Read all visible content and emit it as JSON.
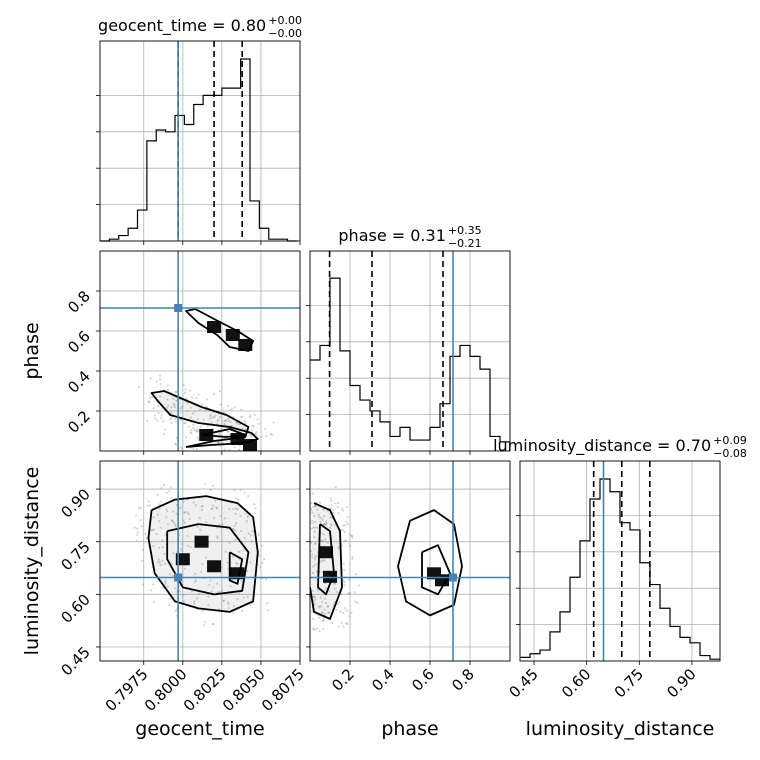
{
  "chart_data": {
    "type": "corner",
    "parameters": [
      "geocent_time",
      "phase",
      "luminosity_distance"
    ],
    "axis_labels": {
      "x": [
        "geocent_time",
        "phase",
        "luminosity_distance"
      ],
      "y": [
        "phase",
        "luminosity_distance"
      ]
    },
    "truth": {
      "geocent_time": 0.7997,
      "phase": 0.715,
      "luminosity_distance": 0.648
    },
    "colors": {
      "truth": "#4682b4",
      "histogram": "#000000",
      "contour": "#000000",
      "grid": "#b0b0b0"
    },
    "titles": [
      {
        "name": "geocent_time",
        "median": "0.80",
        "plus": "+0.00",
        "minus": "−0.00"
      },
      {
        "name": "phase",
        "median": "0.31",
        "plus": "+0.35",
        "minus": "−0.21"
      },
      {
        "name": "luminosity_distance",
        "median": "0.70",
        "plus": "+0.09",
        "minus": "−0.08"
      }
    ],
    "ranges": {
      "geocent_time": [
        0.7947,
        0.8075
      ],
      "phase": [
        0.0,
        1.0
      ],
      "luminosity_distance": [
        0.41,
        0.98
      ]
    },
    "ticks": {
      "geocent_time": {
        "values": [
          0.7975,
          0.8,
          0.8025,
          0.805,
          0.8075
        ],
        "labels": [
          "0.7975",
          "0.8000",
          "0.8025",
          "0.8050",
          "0.8075"
        ]
      },
      "phase": {
        "values": [
          0.2,
          0.4,
          0.6,
          0.8
        ],
        "labels": [
          "0.2",
          "0.4",
          "0.6",
          "0.8"
        ]
      },
      "luminosity_distance": {
        "values": [
          0.45,
          0.6,
          0.75,
          0.9
        ],
        "labels": [
          "0.45",
          "0.60",
          "0.75",
          "0.90"
        ]
      }
    },
    "quantiles": {
      "geocent_time": [
        0.7997,
        0.802,
        0.8038
      ],
      "phase": [
        0.098,
        0.31,
        0.665
      ],
      "luminosity_distance": [
        0.62,
        0.7,
        0.78
      ]
    },
    "histograms": {
      "geocent_time": {
        "edges": [
          0.7947,
          0.7953,
          0.7959,
          0.7965,
          0.7971,
          0.7977,
          0.7983,
          0.7989,
          0.7995,
          0.8001,
          0.8007,
          0.8013,
          0.8019,
          0.8025,
          0.8031,
          0.8037,
          0.8043,
          0.8049,
          0.8055,
          0.8061,
          0.8067,
          0.8073
        ],
        "counts": [
          0.0,
          0.01,
          0.03,
          0.07,
          0.17,
          0.55,
          0.61,
          0.6,
          0.69,
          0.64,
          0.75,
          0.8,
          0.8,
          0.84,
          0.84,
          1.0,
          0.22,
          0.07,
          0.01,
          0.01,
          0.0
        ]
      },
      "phase": {
        "edges": [
          0.0,
          0.05,
          0.1,
          0.15,
          0.2,
          0.25,
          0.3,
          0.35,
          0.4,
          0.45,
          0.5,
          0.55,
          0.6,
          0.65,
          0.7,
          0.75,
          0.8,
          0.85,
          0.9,
          0.95,
          1.0
        ],
        "counts": [
          0.5,
          0.58,
          0.95,
          0.55,
          0.36,
          0.28,
          0.22,
          0.16,
          0.08,
          0.13,
          0.06,
          0.06,
          0.13,
          0.26,
          0.52,
          0.58,
          0.52,
          0.45,
          0.08,
          0.05
        ]
      },
      "luminosity_distance": {
        "edges": [
          0.41,
          0.4385,
          0.467,
          0.4955,
          0.524,
          0.5525,
          0.581,
          0.6095,
          0.638,
          0.6665,
          0.695,
          0.7235,
          0.752,
          0.7805,
          0.809,
          0.8375,
          0.866,
          0.8945,
          0.923,
          0.9515,
          0.98
        ],
        "counts": [
          0.02,
          0.04,
          0.06,
          0.16,
          0.27,
          0.46,
          0.66,
          0.89,
          1.0,
          0.93,
          0.76,
          0.72,
          0.54,
          0.42,
          0.29,
          0.19,
          0.13,
          0.1,
          0.03,
          0.01
        ]
      }
    },
    "pairs": [
      {
        "x": "geocent_time",
        "y": "phase",
        "contours": [
          [
            [
              0.8002,
              0.02
            ],
            [
              0.8018,
              0.03
            ],
            [
              0.804,
              0.04
            ],
            [
              0.8048,
              0.06
            ],
            [
              0.8044,
              0.09
            ],
            [
              0.803,
              0.12
            ],
            [
              0.801,
              0.14
            ],
            [
              0.7992,
              0.18
            ],
            [
              0.7984,
              0.25
            ],
            [
              0.798,
              0.29
            ],
            [
              0.7988,
              0.3
            ],
            [
              0.8,
              0.26
            ],
            [
              0.8012,
              0.22
            ],
            [
              0.8028,
              0.18
            ],
            [
              0.8042,
              0.12
            ],
            [
              0.804,
              0.07
            ],
            [
              0.802,
              0.05
            ],
            [
              0.8002,
              0.02
            ]
          ],
          [
            [
              0.8012,
              0.08
            ],
            [
              0.803,
              0.11
            ],
            [
              0.804,
              0.08
            ],
            [
              0.8028,
              0.07
            ],
            [
              0.8012,
              0.08
            ]
          ],
          [
            [
              0.8008,
              0.71
            ],
            [
              0.802,
              0.66
            ],
            [
              0.8035,
              0.6
            ],
            [
              0.8045,
              0.55
            ],
            [
              0.8042,
              0.5
            ],
            [
              0.803,
              0.52
            ],
            [
              0.8022,
              0.58
            ],
            [
              0.801,
              0.64
            ],
            [
              0.8002,
              0.7
            ],
            [
              0.8008,
              0.71
            ]
          ]
        ],
        "density": [
          [
            0.802,
            0.62
          ],
          [
            0.8032,
            0.58
          ],
          [
            0.804,
            0.53
          ],
          [
            0.8015,
            0.08
          ],
          [
            0.8035,
            0.06
          ],
          [
            0.8043,
            0.03
          ]
        ]
      },
      {
        "x": "geocent_time",
        "y": "luminosity_distance",
        "contours": [
          [
            [
              0.798,
              0.84
            ],
            [
              0.7995,
              0.87
            ],
            [
              0.8015,
              0.88
            ],
            [
              0.8035,
              0.86
            ],
            [
              0.8045,
              0.82
            ],
            [
              0.8048,
              0.72
            ],
            [
              0.8045,
              0.58
            ],
            [
              0.803,
              0.55
            ],
            [
              0.801,
              0.56
            ],
            [
              0.7995,
              0.58
            ],
            [
              0.7982,
              0.66
            ],
            [
              0.7978,
              0.76
            ],
            [
              0.798,
              0.84
            ]
          ],
          [
            [
              0.799,
              0.78
            ],
            [
              0.801,
              0.8
            ],
            [
              0.803,
              0.79
            ],
            [
              0.8042,
              0.72
            ],
            [
              0.8038,
              0.61
            ],
            [
              0.802,
              0.6
            ],
            [
              0.8,
              0.62
            ],
            [
              0.799,
              0.7
            ],
            [
              0.799,
              0.78
            ]
          ],
          [
            [
              0.803,
              0.72
            ],
            [
              0.8038,
              0.7
            ],
            [
              0.8035,
              0.63
            ],
            [
              0.803,
              0.64
            ],
            [
              0.803,
              0.72
            ]
          ]
        ],
        "density": [
          [
            0.8,
            0.7
          ],
          [
            0.802,
            0.68
          ],
          [
            0.8035,
            0.66
          ],
          [
            0.8012,
            0.75
          ]
        ]
      },
      {
        "x": "phase",
        "y": "luminosity_distance",
        "contours": [
          [
            [
              0.02,
              0.86
            ],
            [
              0.1,
              0.84
            ],
            [
              0.15,
              0.78
            ],
            [
              0.16,
              0.62
            ],
            [
              0.1,
              0.53
            ],
            [
              0.02,
              0.55
            ],
            [
              0.0,
              0.62
            ]
          ],
          [
            [
              0.05,
              0.8
            ],
            [
              0.1,
              0.78
            ],
            [
              0.12,
              0.66
            ],
            [
              0.08,
              0.6
            ],
            [
              0.04,
              0.62
            ],
            [
              0.05,
              0.8
            ]
          ],
          [
            [
              0.5,
              0.81
            ],
            [
              0.62,
              0.84
            ],
            [
              0.72,
              0.8
            ],
            [
              0.76,
              0.68
            ],
            [
              0.72,
              0.57
            ],
            [
              0.6,
              0.54
            ],
            [
              0.48,
              0.58
            ],
            [
              0.44,
              0.68
            ],
            [
              0.5,
              0.81
            ]
          ],
          [
            [
              0.56,
              0.72
            ],
            [
              0.64,
              0.74
            ],
            [
              0.7,
              0.66
            ],
            [
              0.64,
              0.6
            ],
            [
              0.56,
              0.62
            ],
            [
              0.56,
              0.72
            ]
          ]
        ],
        "density": [
          [
            0.08,
            0.72
          ],
          [
            0.1,
            0.65
          ],
          [
            0.62,
            0.66
          ],
          [
            0.66,
            0.64
          ]
        ]
      }
    ]
  }
}
